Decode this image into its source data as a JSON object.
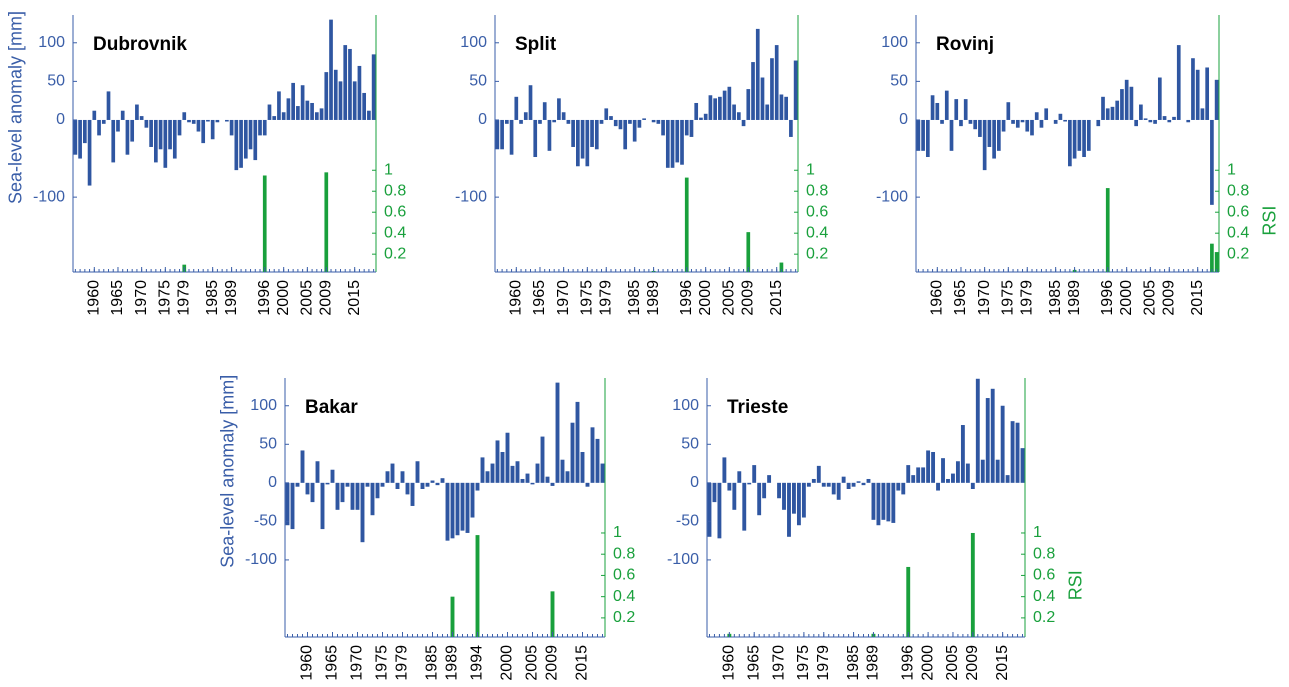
{
  "chart_data": [
    {
      "type": "bar",
      "title": "Dubrovnik",
      "ylabel": "Sea-level anomaly [mm]",
      "x": [
        1956,
        1957,
        1958,
        1959,
        1960,
        1961,
        1962,
        1963,
        1964,
        1965,
        1966,
        1967,
        1968,
        1969,
        1970,
        1971,
        1972,
        1973,
        1974,
        1975,
        1976,
        1977,
        1978,
        1979,
        1980,
        1981,
        1982,
        1983,
        1984,
        1985,
        1986,
        1987,
        1988,
        1989,
        1990,
        1991,
        1992,
        1993,
        1994,
        1995,
        1996,
        1997,
        1998,
        1999,
        2000,
        2001,
        2002,
        2003,
        2004,
        2005,
        2006,
        2007,
        2008,
        2009,
        2010,
        2011,
        2012,
        2013,
        2014,
        2015,
        2016,
        2017,
        2018,
        2019
      ],
      "xlim": [
        1955.5,
        2019.5
      ],
      "xticks": [
        1960,
        1965,
        1970,
        1975,
        1979,
        1985,
        1989,
        1996,
        2000,
        2005,
        2009,
        2015
      ],
      "ylim": [
        -197,
        136
      ],
      "yticks": [
        100,
        50,
        0,
        -100
      ],
      "y2lim": [
        0.03,
        2.48
      ],
      "y2ticks": [
        0.2,
        0.4,
        0.6,
        0.8,
        1
      ],
      "series": [
        {
          "color": "#2f56a1",
          "values": [
            -45,
            -50,
            -30,
            -85,
            12,
            -20,
            -5,
            37,
            -55,
            -15,
            12,
            -45,
            -28,
            20,
            5,
            -10,
            -35,
            -55,
            -38,
            -62,
            -38,
            -50,
            -20,
            10,
            -3,
            -5,
            -15,
            -30,
            -2,
            -25,
            -3,
            0,
            -2,
            -20,
            -65,
            -62,
            -50,
            -38,
            -52,
            -20,
            -20,
            20,
            5,
            37,
            10,
            28,
            48,
            18,
            45,
            25,
            22,
            10,
            15,
            62,
            130,
            65,
            50,
            97,
            92,
            50,
            70,
            35,
            12,
            85
          ]
        },
        {
          "color": "#19a03c",
          "axis": "y2",
          "x": [
            1979,
            1989,
            1996,
            2009
          ],
          "values": [
            0.1,
            0.03,
            0.95,
            0.98
          ]
        }
      ]
    },
    {
      "type": "bar",
      "title": "Split",
      "x": [
        1956,
        1957,
        1958,
        1959,
        1960,
        1961,
        1962,
        1963,
        1964,
        1965,
        1966,
        1967,
        1968,
        1969,
        1970,
        1971,
        1972,
        1973,
        1974,
        1975,
        1976,
        1977,
        1978,
        1979,
        1980,
        1981,
        1982,
        1983,
        1984,
        1985,
        1986,
        1987,
        1988,
        1989,
        1990,
        1991,
        1992,
        1993,
        1994,
        1995,
        1996,
        1997,
        1998,
        1999,
        2000,
        2001,
        2002,
        2003,
        2004,
        2005,
        2006,
        2007,
        2008,
        2009,
        2010,
        2011,
        2012,
        2013,
        2014,
        2015,
        2016,
        2017,
        2018,
        2019
      ],
      "xlim": [
        1955.5,
        2019.5
      ],
      "xticks": [
        1960,
        1965,
        1970,
        1975,
        1979,
        1985,
        1989,
        1996,
        2000,
        2005,
        2009,
        2015
      ],
      "ylim": [
        -197,
        136
      ],
      "yticks": [
        100,
        50,
        0,
        -100
      ],
      "y2lim": [
        0.03,
        2.48
      ],
      "y2ticks": [
        0.2,
        0.4,
        0.6,
        0.8,
        1
      ],
      "series": [
        {
          "color": "#2f56a1",
          "values": [
            -38,
            -38,
            -5,
            -45,
            30,
            -5,
            10,
            45,
            -48,
            -5,
            23,
            -40,
            -3,
            28,
            10,
            -5,
            -35,
            -60,
            -50,
            -60,
            -35,
            -38,
            -5,
            15,
            5,
            -8,
            -12,
            -38,
            -5,
            -28,
            -10,
            2,
            0,
            -3,
            -5,
            -20,
            -62,
            -62,
            -55,
            -58,
            -20,
            -22,
            22,
            3,
            8,
            32,
            28,
            30,
            38,
            43,
            20,
            10,
            -8,
            40,
            75,
            118,
            55,
            20,
            80,
            97,
            33,
            30,
            -22,
            77
          ]
        },
        {
          "color": "#19a03c",
          "axis": "y2",
          "x": [
            1989,
            1996,
            2009,
            2016
          ],
          "values": [
            0.04,
            0.93,
            0.41,
            0.12
          ]
        }
      ]
    },
    {
      "type": "bar",
      "title": "Rovinj",
      "y2label": "RSI",
      "x": [
        1956,
        1957,
        1958,
        1959,
        1960,
        1961,
        1962,
        1963,
        1964,
        1965,
        1966,
        1967,
        1968,
        1969,
        1970,
        1971,
        1972,
        1973,
        1974,
        1975,
        1976,
        1977,
        1978,
        1979,
        1980,
        1981,
        1982,
        1983,
        1984,
        1985,
        1986,
        1987,
        1988,
        1989,
        1990,
        1991,
        1992,
        1993,
        1994,
        1995,
        1996,
        1997,
        1998,
        1999,
        2000,
        2001,
        2002,
        2003,
        2004,
        2005,
        2006,
        2007,
        2008,
        2009,
        2010,
        2011,
        2012,
        2013,
        2014,
        2015,
        2016,
        2017,
        2018,
        2019
      ],
      "xlim": [
        1955.5,
        2019.5
      ],
      "xticks": [
        1960,
        1965,
        1970,
        1975,
        1979,
        1985,
        1989,
        1996,
        2000,
        2005,
        2009,
        2015
      ],
      "ylim": [
        -197,
        136
      ],
      "yticks": [
        100,
        50,
        0,
        -100
      ],
      "y2lim": [
        0.03,
        2.48
      ],
      "y2ticks": [
        0.2,
        0.4,
        0.6,
        0.8,
        1
      ],
      "series": [
        {
          "color": "#2f56a1",
          "values": [
            -40,
            -40,
            -48,
            32,
            22,
            -5,
            38,
            -40,
            27,
            -8,
            27,
            -5,
            -12,
            -22,
            -65,
            -35,
            -50,
            -40,
            -15,
            23,
            -5,
            -10,
            -3,
            -15,
            -20,
            10,
            -10,
            15,
            0,
            -5,
            8,
            -2,
            -60,
            -50,
            -40,
            -48,
            -40,
            0,
            -8,
            30,
            15,
            17,
            25,
            40,
            52,
            43,
            -8,
            20,
            2,
            -3,
            -5,
            55,
            5,
            -3,
            4,
            97,
            0,
            -3,
            80,
            65,
            15,
            68,
            -110,
            52
          ]
        },
        {
          "color": "#19a03c",
          "axis": "y2",
          "x": [
            1989,
            1996,
            2018,
            2019
          ],
          "values": [
            0.05,
            0.83,
            0.3,
            0.22
          ]
        }
      ]
    },
    {
      "type": "bar",
      "title": "Bakar",
      "ylabel": "Sea-level anomaly [mm]",
      "x": [
        1956,
        1957,
        1958,
        1959,
        1960,
        1961,
        1962,
        1963,
        1964,
        1965,
        1966,
        1967,
        1968,
        1969,
        1970,
        1971,
        1972,
        1973,
        1974,
        1975,
        1976,
        1977,
        1978,
        1979,
        1980,
        1981,
        1982,
        1983,
        1984,
        1985,
        1986,
        1987,
        1988,
        1989,
        1990,
        1991,
        1992,
        1993,
        1994,
        1995,
        1996,
        1997,
        1998,
        1999,
        2000,
        2001,
        2002,
        2003,
        2004,
        2005,
        2006,
        2007,
        2008,
        2009,
        2010,
        2011,
        2012,
        2013,
        2014,
        2015,
        2016,
        2017,
        2018,
        2019
      ],
      "xlim": [
        1955.5,
        2019.5
      ],
      "xticks": [
        1960,
        1965,
        1970,
        1975,
        1979,
        1985,
        1989,
        1994,
        2000,
        2005,
        2009,
        2015
      ],
      "ylim": [
        -200,
        136
      ],
      "yticks": [
        100,
        50,
        0,
        -50,
        -100
      ],
      "y2lim": [
        0.02,
        2.46
      ],
      "y2ticks": [
        0.2,
        0.4,
        0.6,
        0.8,
        1
      ],
      "series": [
        {
          "color": "#2f56a1",
          "values": [
            -55,
            -60,
            -5,
            42,
            -15,
            -25,
            28,
            -60,
            -2,
            17,
            -35,
            -25,
            -5,
            -35,
            -35,
            -77,
            -5,
            -42,
            -20,
            -5,
            15,
            25,
            -8,
            15,
            -15,
            -30,
            28,
            -8,
            -5,
            3,
            -3,
            6,
            -75,
            -72,
            -68,
            -62,
            -65,
            -45,
            -10,
            33,
            15,
            25,
            55,
            40,
            65,
            22,
            28,
            5,
            12,
            -2,
            25,
            60,
            8,
            -4,
            130,
            30,
            15,
            78,
            105,
            40,
            -5,
            72,
            57,
            25
          ]
        },
        {
          "color": "#19a03c",
          "axis": "y2",
          "x": [
            1989,
            1994,
            2009
          ],
          "values": [
            0.4,
            0.98,
            0.45
          ]
        }
      ]
    },
    {
      "type": "bar",
      "title": "Trieste",
      "y2label": "RSI",
      "x": [
        1956,
        1957,
        1958,
        1959,
        1960,
        1961,
        1962,
        1963,
        1964,
        1965,
        1966,
        1967,
        1968,
        1969,
        1970,
        1971,
        1972,
        1973,
        1974,
        1975,
        1976,
        1977,
        1978,
        1979,
        1980,
        1981,
        1982,
        1983,
        1984,
        1985,
        1986,
        1987,
        1988,
        1989,
        1990,
        1991,
        1992,
        1993,
        1994,
        1995,
        1996,
        1997,
        1998,
        1999,
        2000,
        2001,
        2002,
        2003,
        2004,
        2005,
        2006,
        2007,
        2008,
        2009,
        2010,
        2011,
        2012,
        2013,
        2014,
        2015,
        2016,
        2017,
        2018,
        2019
      ],
      "xlim": [
        1955.5,
        2019.5
      ],
      "xticks": [
        1960,
        1965,
        1970,
        1975,
        1979,
        1985,
        1989,
        1996,
        2000,
        2005,
        2009,
        2015
      ],
      "ylim": [
        -200,
        136
      ],
      "yticks": [
        100,
        50,
        0,
        -50,
        -100
      ],
      "y2lim": [
        0.02,
        2.46
      ],
      "y2ticks": [
        0.2,
        0.4,
        0.6,
        0.8,
        1
      ],
      "series": [
        {
          "color": "#2f56a1",
          "values": [
            -70,
            -25,
            -72,
            33,
            -10,
            -35,
            15,
            -62,
            -2,
            23,
            -42,
            -20,
            10,
            0,
            -20,
            -35,
            -70,
            -40,
            -55,
            -45,
            -5,
            5,
            22,
            -5,
            -5,
            -15,
            -22,
            8,
            -8,
            -5,
            2,
            -3,
            5,
            -48,
            -55,
            -48,
            -50,
            -52,
            -10,
            -15,
            23,
            10,
            20,
            20,
            42,
            40,
            -10,
            32,
            5,
            12,
            28,
            75,
            25,
            -8,
            135,
            30,
            110,
            122,
            30,
            100,
            10,
            80,
            78,
            45
          ]
        },
        {
          "color": "#19a03c",
          "axis": "y2",
          "x": [
            1960,
            1989,
            1996,
            2009
          ],
          "values": [
            0.05,
            0.05,
            0.68,
            1
          ]
        }
      ]
    }
  ]
}
